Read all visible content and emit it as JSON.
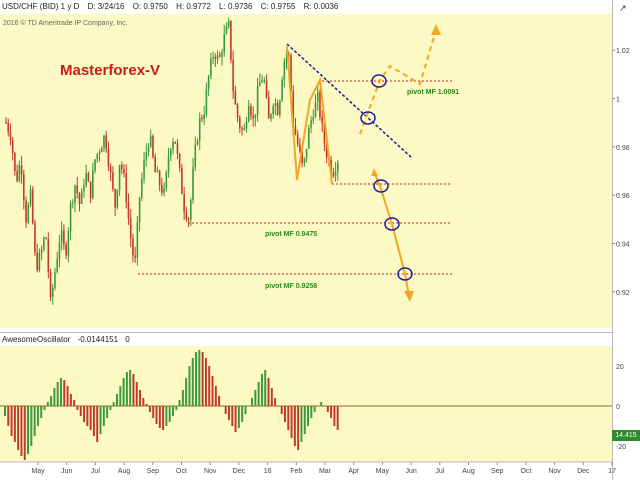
{
  "header": {
    "symbol": "USD/CHF (BID) 1 y D",
    "date": "D: 3/24/16",
    "open": "O: 0.9750",
    "high": "H: 0.9772",
    "low": "L: 0.9736",
    "close": "C: 0.9755",
    "range": "R: 0.0036"
  },
  "copyright": "2016 © TD Ameritrade IP Company, Inc.",
  "title": "Masterforex-V",
  "oscillator_header": {
    "name": "AwesomeOscillator",
    "value": "-0.0144151",
    "extra": "0"
  },
  "oscillator_value_tag": "14.415",
  "corner_icon": "expand-arrow-icon",
  "colors": {
    "panel_bg": "#fdf9c4",
    "bull": "#3a9a3a",
    "bear": "#c0392b",
    "orange": "#f5a623",
    "trend": "#1a1aa0",
    "pivot_line": "#d02020",
    "pivot_text": "#2a8a1a"
  },
  "chart_data": [
    {
      "type": "candlestick",
      "title": "Masterforex-V",
      "y_ticks": [
        "1.02",
        "1",
        "0.98",
        "0.96",
        "0.94",
        "0.92"
      ],
      "y_tick_values": [
        1.02,
        1.0,
        0.98,
        0.96,
        0.94,
        0.92
      ],
      "x_ticks": [
        "May",
        "Jun",
        "Jul",
        "Aug",
        "Sep",
        "Oct",
        "Nov",
        "Dec",
        "16",
        "Feb",
        "Mar",
        "Apr",
        "May",
        "Jun",
        "Jul",
        "Aug",
        "Sep",
        "Oct",
        "Nov",
        "Dec",
        "17"
      ],
      "ylim": [
        0.905,
        1.035
      ],
      "price_path": [
        0.99,
        0.985,
        0.965,
        0.975,
        0.95,
        0.96,
        0.93,
        0.935,
        0.945,
        0.915,
        0.93,
        0.945,
        0.935,
        0.955,
        0.965,
        0.955,
        0.97,
        0.96,
        0.975,
        0.98,
        0.985,
        0.97,
        0.955,
        0.975,
        0.965,
        0.945,
        0.93,
        0.96,
        0.975,
        0.985,
        0.97,
        0.965,
        0.96,
        0.98,
        0.985,
        0.97,
        0.955,
        0.95,
        0.975,
        0.99,
        0.995,
        1.01,
        1.02,
        1.015,
        1.025,
        1.03,
        1.0,
        0.99,
        0.985,
        1.0,
        0.99,
        1.005,
        1.01,
        0.99,
        1.0,
        0.995,
        1.015,
        1.02,
        0.99,
        0.98,
        0.97,
        0.985,
        0.995,
        1.0,
        0.985,
        0.975,
        0.97,
        0.975
      ],
      "pivots": [
        {
          "label": "",
          "value": 1.0091
        },
        {
          "label": "pivot MF 1.0091",
          "value": 1.0091
        },
        {
          "label": "pivot MF 0.9475",
          "value": 0.9475
        },
        {
          "label": "pivot MF 0.9258",
          "value": 0.9258
        }
      ],
      "pivot_texts": [
        "pivot MF 1.0091",
        "pivot MF 0.9475",
        "pivot MF 0.9258"
      ],
      "grid": false,
      "legend": "none"
    },
    {
      "type": "bar",
      "title": "AwesomeOscillator",
      "y_ticks": [
        "20",
        "0",
        "-20"
      ],
      "y_tick_values": [
        20,
        0,
        -20
      ],
      "ylim": [
        -28,
        30
      ],
      "values": [
        -5,
        -10,
        -15,
        -18,
        -22,
        -25,
        -27,
        -24,
        -20,
        -15,
        -10,
        -6,
        -2,
        2,
        5,
        9,
        12,
        14,
        13,
        10,
        6,
        3,
        -2,
        -5,
        -8,
        -10,
        -12,
        -15,
        -18,
        -14,
        -10,
        -6,
        -2,
        2,
        6,
        10,
        14,
        17,
        18,
        16,
        12,
        8,
        4,
        1,
        -3,
        -6,
        -9,
        -11,
        -12,
        -10,
        -8,
        -5,
        -2,
        3,
        8,
        14,
        20,
        24,
        27,
        28,
        27,
        24,
        20,
        15,
        10,
        5,
        0,
        -4,
        -7,
        -10,
        -13,
        -11,
        -8,
        -4,
        0,
        4,
        8,
        12,
        16,
        18,
        14,
        9,
        4,
        0,
        -4,
        -8,
        -12,
        -16,
        -20,
        -22,
        -18,
        -14,
        -10,
        -6,
        -3,
        0,
        2,
        0,
        -3,
        -6,
        -10,
        -12
      ]
    }
  ]
}
